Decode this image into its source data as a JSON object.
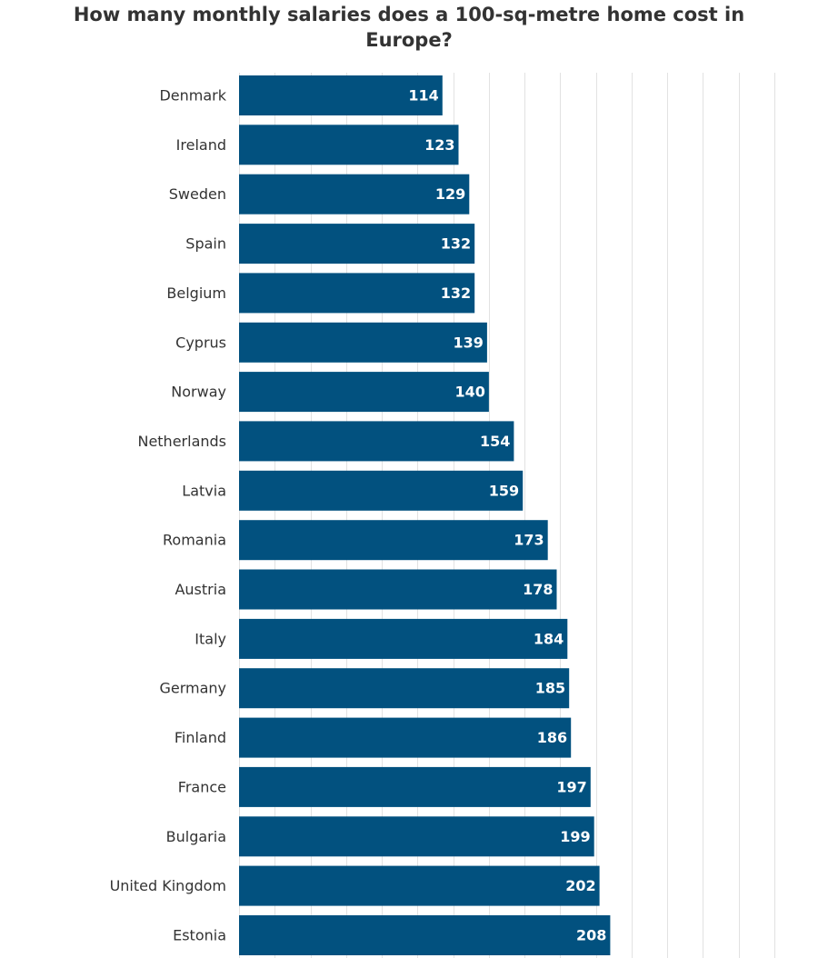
{
  "title_line1": "How many monthly salaries does a 100-sq-metre home cost in",
  "title_line2": "Europe?",
  "chart_data": {
    "type": "bar",
    "orientation": "horizontal",
    "title": "How many monthly salaries does a 100-sq-metre home cost in Europe?",
    "categories": [
      "Denmark",
      "Ireland",
      "Sweden",
      "Spain",
      "Belgium",
      "Cyprus",
      "Norway",
      "Netherlands",
      "Latvia",
      "Romania",
      "Austria",
      "Italy",
      "Germany",
      "Finland",
      "France",
      "Bulgaria",
      "United Kingdom",
      "Estonia"
    ],
    "values": [
      114,
      123,
      129,
      132,
      132,
      139,
      140,
      154,
      159,
      173,
      178,
      184,
      185,
      186,
      197,
      199,
      202,
      208
    ],
    "xlim": [
      0,
      300
    ],
    "grid": true,
    "bar_color": "#02517f",
    "value_label_color": "#ffffff",
    "gridline_color": "#e2e2e2"
  }
}
